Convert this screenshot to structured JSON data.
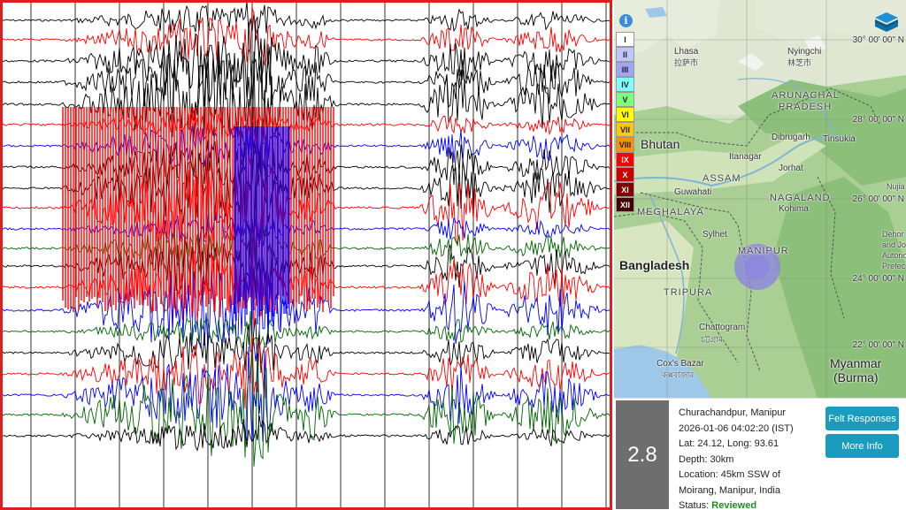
{
  "map": {
    "latitudes": [
      "30° 00' 00\" N",
      "28° 00' 00\" N",
      "26° 00' 00\" N",
      "24° 00' 00\" N",
      "22° 00' 00\" N"
    ],
    "countries": [
      "Bhutan",
      "Bangladesh",
      "Myanmar",
      "(Burma)"
    ],
    "states": [
      "ARUNACHAL",
      "PRADESH",
      "ASSAM",
      "NAGALAND",
      "MEGHALAYA",
      "MANIPUR",
      "TRIPURA"
    ],
    "cities": [
      "Lhasa",
      "拉萨市",
      "Nyingchi",
      "林芝市",
      "Dibrugarh",
      "Tinsukia",
      "Itanagar",
      "Jorhat",
      "Guwahati",
      "Kohima",
      "Sylhet",
      "Chattogram",
      "চট্টগ্রাম",
      "Cox's Bazar",
      "কক্সবাজার",
      "Dehor",
      "and Jo",
      "Autono",
      "Prefec",
      "Nujia"
    ],
    "intensity_scale": [
      {
        "label": "I",
        "color": "#ffffff"
      },
      {
        "label": "II",
        "color": "#bfc6ff"
      },
      {
        "label": "III",
        "color": "#a0a6f5"
      },
      {
        "label": "IV",
        "color": "#80ffff"
      },
      {
        "label": "V",
        "color": "#7cff7c"
      },
      {
        "label": "VI",
        "color": "#ffff00"
      },
      {
        "label": "VII",
        "color": "#ffc800"
      },
      {
        "label": "VIII",
        "color": "#ff9100"
      },
      {
        "label": "IX",
        "color": "#ff0000"
      },
      {
        "label": "X",
        "color": "#c80000"
      },
      {
        "label": "XI",
        "color": "#800000"
      },
      {
        "label": "XII",
        "color": "#400000"
      }
    ],
    "info_icon": "info-icon",
    "layers_icon": "layers-icon",
    "epicenter_color": "#8c82e6"
  },
  "event": {
    "magnitude": "2.8",
    "place": "Churachandpur, Manipur",
    "datetime": "2026-01-06 04:02:20 (IST)",
    "latlong": "Lat: 24.12, Long: 93.61",
    "depth": "Depth: 30km",
    "location_line1": "Location: 45km SSW of",
    "location_line2": "Moirang, Manipur, India",
    "status_label": "Status: ",
    "status_value": "Reviewed"
  },
  "buttons": {
    "felt": "Felt Responses",
    "more": "More Info"
  },
  "colors": {
    "border": "#e21d1d",
    "button": "#1b9bbd",
    "trace_red": "#ff0000",
    "trace_blue": "#0000ff",
    "trace_green": "#006400",
    "trace_black": "#000000",
    "reviewed": "#1e8f1e"
  }
}
